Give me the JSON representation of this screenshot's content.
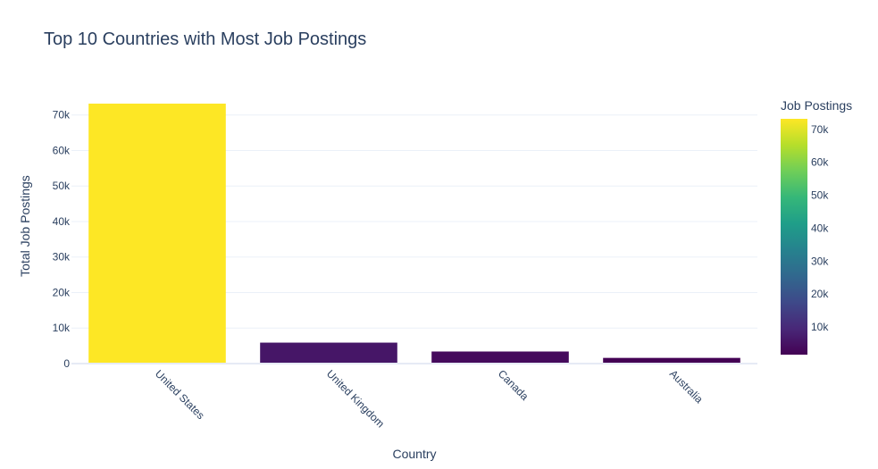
{
  "chart_data": {
    "type": "bar",
    "title": "Top 10 Countries with Most Job Postings",
    "xlabel": "Country",
    "ylabel": "Total Job Postings",
    "categories": [
      "United States",
      "United Kingdom",
      "Canada",
      "Australia"
    ],
    "values": [
      73200,
      5900,
      3400,
      1600
    ],
    "ylim": [
      0,
      73200
    ],
    "y_ticks": [
      0,
      10000,
      20000,
      30000,
      40000,
      50000,
      60000,
      70000
    ],
    "y_tick_labels": [
      "0",
      "10k",
      "20k",
      "30k",
      "40k",
      "50k",
      "60k",
      "70k"
    ],
    "grid": true,
    "colorscale": "Viridis",
    "colorbar": {
      "title": "Job Postings",
      "range": [
        1600,
        73200
      ],
      "ticks": [
        10000,
        20000,
        30000,
        40000,
        50000,
        60000,
        70000
      ],
      "tick_labels": [
        "10k",
        "20k",
        "30k",
        "40k",
        "50k",
        "60k",
        "70k"
      ]
    }
  }
}
